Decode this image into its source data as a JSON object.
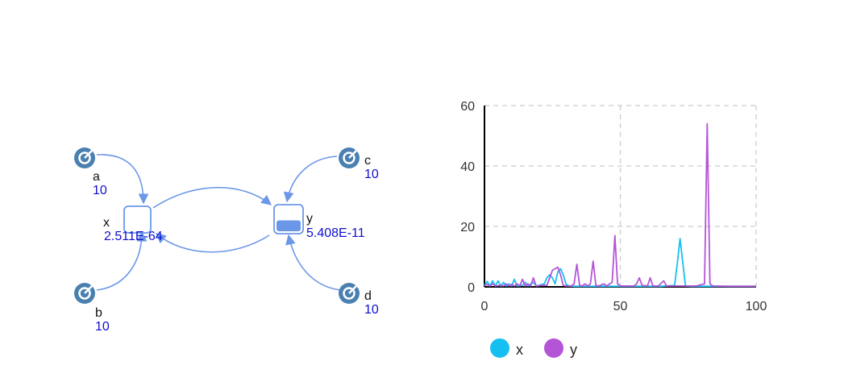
{
  "colors": {
    "edge": "#6b97e8",
    "param_icon": "#4a80b0",
    "species_box": "#6b97e8",
    "series_x": "#16bff2",
    "series_y": "#b455d8",
    "value_text": "#0f0fd0",
    "grid": "#cccccc"
  },
  "diagram": {
    "params": [
      {
        "id": "a",
        "label": "a",
        "value": "10",
        "icon": "parameter-arrow-icon"
      },
      {
        "id": "b",
        "label": "b",
        "value": "10",
        "icon": "parameter-arrow-icon"
      },
      {
        "id": "c",
        "label": "c",
        "value": "10",
        "icon": "parameter-arrow-icon"
      },
      {
        "id": "d",
        "label": "d",
        "value": "10",
        "icon": "parameter-arrow-icon"
      }
    ],
    "species": [
      {
        "id": "x",
        "label": "x",
        "value": "2.511E-64",
        "fill_level": 0.0
      },
      {
        "id": "y",
        "label": "y",
        "value": "5.408E-11",
        "fill_level": 0.45
      }
    ]
  },
  "chart_data": {
    "type": "line",
    "xlim": [
      0,
      100
    ],
    "ylim": [
      0,
      60
    ],
    "xticks": [
      "0",
      "50",
      "100"
    ],
    "yticks": [
      "0",
      "20",
      "40",
      "60"
    ],
    "grid": true,
    "legend_position": "bottom-left",
    "series": [
      {
        "name": "x",
        "color": "#16bff2",
        "points": [
          [
            0,
            0.5
          ],
          [
            1,
            1.8
          ],
          [
            2,
            0.3
          ],
          [
            3,
            2
          ],
          [
            4,
            0.3
          ],
          [
            5,
            2
          ],
          [
            6,
            0.3
          ],
          [
            7,
            1.5
          ],
          [
            8,
            0.3
          ],
          [
            9,
            1
          ],
          [
            10,
            0.3
          ],
          [
            11,
            2.5
          ],
          [
            12,
            0.3
          ],
          [
            14,
            0.5
          ],
          [
            15,
            1.5
          ],
          [
            16,
            0.3
          ],
          [
            18,
            1.5
          ],
          [
            19,
            0.3
          ],
          [
            20,
            0.5
          ],
          [
            22,
            1
          ],
          [
            23,
            3
          ],
          [
            24,
            4
          ],
          [
            25,
            3
          ],
          [
            26,
            1
          ],
          [
            27,
            5
          ],
          [
            28,
            6
          ],
          [
            29,
            4
          ],
          [
            30,
            1
          ],
          [
            31,
            0.3
          ],
          [
            33,
            0.2
          ],
          [
            36,
            0.2
          ],
          [
            40,
            0.2
          ],
          [
            45,
            0.2
          ],
          [
            50,
            0.2
          ],
          [
            55,
            0.2
          ],
          [
            60,
            0.2
          ],
          [
            65,
            0.2
          ],
          [
            70,
            0.5
          ],
          [
            71,
            8
          ],
          [
            72,
            16
          ],
          [
            73,
            8
          ],
          [
            74,
            0.3
          ],
          [
            76,
            0.2
          ],
          [
            82,
            0.2
          ],
          [
            90,
            0.2
          ],
          [
            100,
            0.2
          ]
        ]
      },
      {
        "name": "y",
        "color": "#b455d8",
        "points": [
          [
            0,
            0.3
          ],
          [
            1,
            0.8
          ],
          [
            2,
            0.3
          ],
          [
            3,
            1
          ],
          [
            4,
            0.3
          ],
          [
            6,
            0.5
          ],
          [
            7,
            0.3
          ],
          [
            8,
            1
          ],
          [
            9,
            0.3
          ],
          [
            10,
            0.8
          ],
          [
            11,
            0.3
          ],
          [
            12,
            1
          ],
          [
            13,
            0.3
          ],
          [
            14,
            2.5
          ],
          [
            15,
            0.3
          ],
          [
            16,
            1
          ],
          [
            17,
            0.3
          ],
          [
            18,
            3
          ],
          [
            19,
            0.3
          ],
          [
            21,
            0.5
          ],
          [
            23,
            0.5
          ],
          [
            24,
            3
          ],
          [
            25,
            5.5
          ],
          [
            26,
            6
          ],
          [
            27,
            6.5
          ],
          [
            28,
            4
          ],
          [
            29,
            0.5
          ],
          [
            30,
            0.3
          ],
          [
            32,
            0.3
          ],
          [
            33,
            1
          ],
          [
            34,
            7.5
          ],
          [
            35,
            0.5
          ],
          [
            36,
            0.3
          ],
          [
            37,
            1
          ],
          [
            38,
            0.3
          ],
          [
            39,
            1
          ],
          [
            40,
            8.5
          ],
          [
            41,
            0.5
          ],
          [
            42,
            0.3
          ],
          [
            44,
            1
          ],
          [
            45,
            0.3
          ],
          [
            47,
            1.5
          ],
          [
            48,
            17
          ],
          [
            49,
            1
          ],
          [
            50,
            0.3
          ],
          [
            53,
            0.3
          ],
          [
            55,
            0.3
          ],
          [
            56,
            1
          ],
          [
            57,
            3
          ],
          [
            58,
            0.5
          ],
          [
            60,
            0.3
          ],
          [
            61,
            3
          ],
          [
            62,
            0.3
          ],
          [
            64,
            0.3
          ],
          [
            66,
            2
          ],
          [
            67,
            0.3
          ],
          [
            70,
            0.3
          ],
          [
            75,
            0.3
          ],
          [
            78,
            0.3
          ],
          [
            81,
            1
          ],
          [
            82,
            54
          ],
          [
            83,
            1
          ],
          [
            84,
            0.3
          ],
          [
            90,
            0.2
          ],
          [
            100,
            0.2
          ]
        ]
      }
    ]
  }
}
